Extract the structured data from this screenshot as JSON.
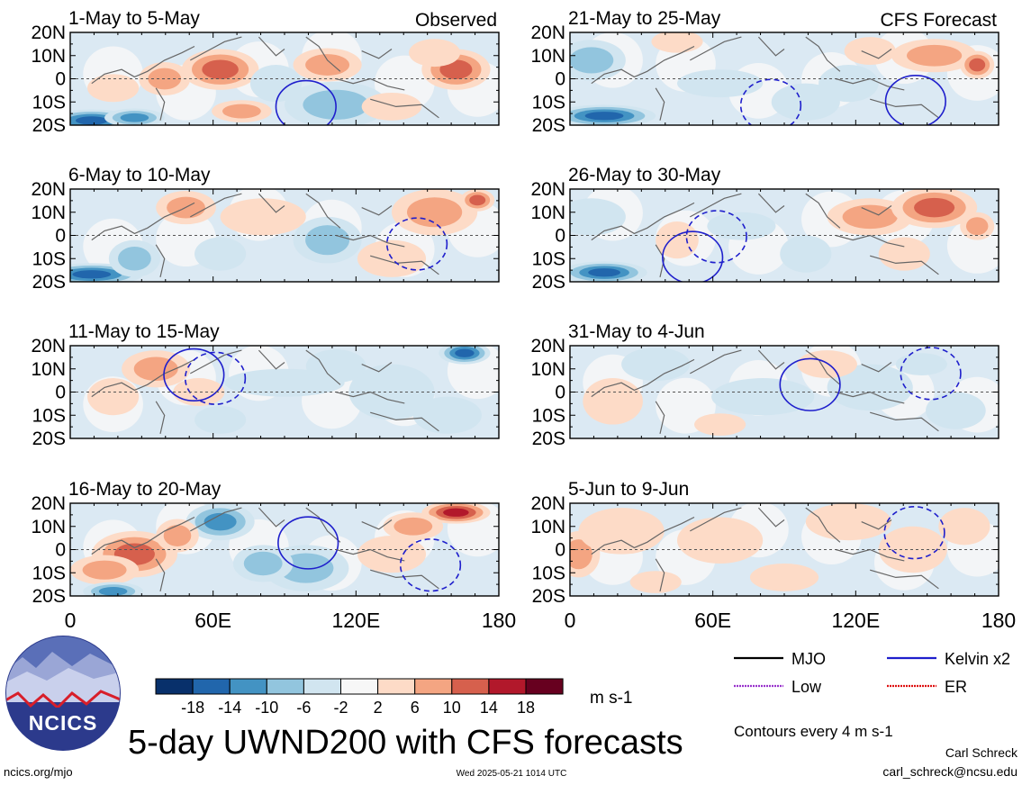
{
  "panels": [
    {
      "title": "1-May to 5-May",
      "tag": "Observed",
      "pattern": 0,
      "contours": [
        {
          "kind": "kelvin",
          "style": "solid"
        }
      ]
    },
    {
      "title": "6-May to 10-May",
      "tag": "",
      "pattern": 1,
      "contours": [
        {
          "kind": "kelvin",
          "style": "dashed"
        }
      ]
    },
    {
      "title": "11-May to 15-May",
      "tag": "",
      "pattern": 2,
      "contours": [
        {
          "kind": "kelvin",
          "style": "solid"
        },
        {
          "kind": "kelvin",
          "style": "dashed"
        }
      ]
    },
    {
      "title": "16-May to 20-May",
      "tag": "",
      "pattern": 3,
      "contours": [
        {
          "kind": "kelvin",
          "style": "solid"
        },
        {
          "kind": "kelvin",
          "style": "dashed"
        }
      ]
    },
    {
      "title": "21-May to 25-May",
      "tag": "CFS Forecast",
      "pattern": 4,
      "contours": [
        {
          "kind": "kelvin",
          "style": "solid"
        },
        {
          "kind": "kelvin",
          "style": "dashed"
        }
      ]
    },
    {
      "title": "26-May to 30-May",
      "tag": "",
      "pattern": 5,
      "contours": [
        {
          "kind": "kelvin",
          "style": "solid"
        },
        {
          "kind": "kelvin",
          "style": "dashed"
        }
      ]
    },
    {
      "title": "31-May to 4-Jun",
      "tag": "",
      "pattern": 6,
      "contours": [
        {
          "kind": "kelvin",
          "style": "solid"
        },
        {
          "kind": "kelvin",
          "style": "dashed"
        }
      ]
    },
    {
      "title": "5-Jun to 9-Jun",
      "tag": "",
      "pattern": 7,
      "contours": [
        {
          "kind": "kelvin",
          "style": "dashed"
        }
      ]
    }
  ],
  "lat_labels": [
    "20N",
    "10N",
    "0",
    "10S",
    "20S"
  ],
  "lon_labels": [
    "0",
    "60E",
    "120E",
    "180"
  ],
  "colorbar": {
    "labels": [
      "-18",
      "-14",
      "-10",
      "-6",
      "-2",
      "2",
      "6",
      "10",
      "14",
      "18"
    ],
    "colors": [
      "#08306b",
      "#2166ac",
      "#4393c3",
      "#92c5de",
      "#d1e5f0",
      "#f7f7f7",
      "#fddbc7",
      "#f4a582",
      "#d6604d",
      "#b2182b",
      "#67001f"
    ],
    "units": "m s-1"
  },
  "legend": {
    "items": [
      {
        "label": "MJO",
        "color": "#000000",
        "style": "solid"
      },
      {
        "label": "Kelvin x2",
        "color": "#1f1fcc",
        "style": "solid"
      },
      {
        "label": "Low",
        "color": "#9933cc",
        "style": "dotted"
      },
      {
        "label": "ER",
        "color": "#dd1111",
        "style": "dotted"
      }
    ],
    "contour_note": "Contours every 4 m s-1"
  },
  "logo": {
    "text": "NCICS"
  },
  "title": "5-day UWND200 with CFS forecasts",
  "footer": {
    "left": "ncics.org/mjo",
    "center": "Wed 2025-05-21 1014 UTC",
    "author": "Carl Schreck",
    "email": "carl_schreck@ncsu.edu"
  }
}
